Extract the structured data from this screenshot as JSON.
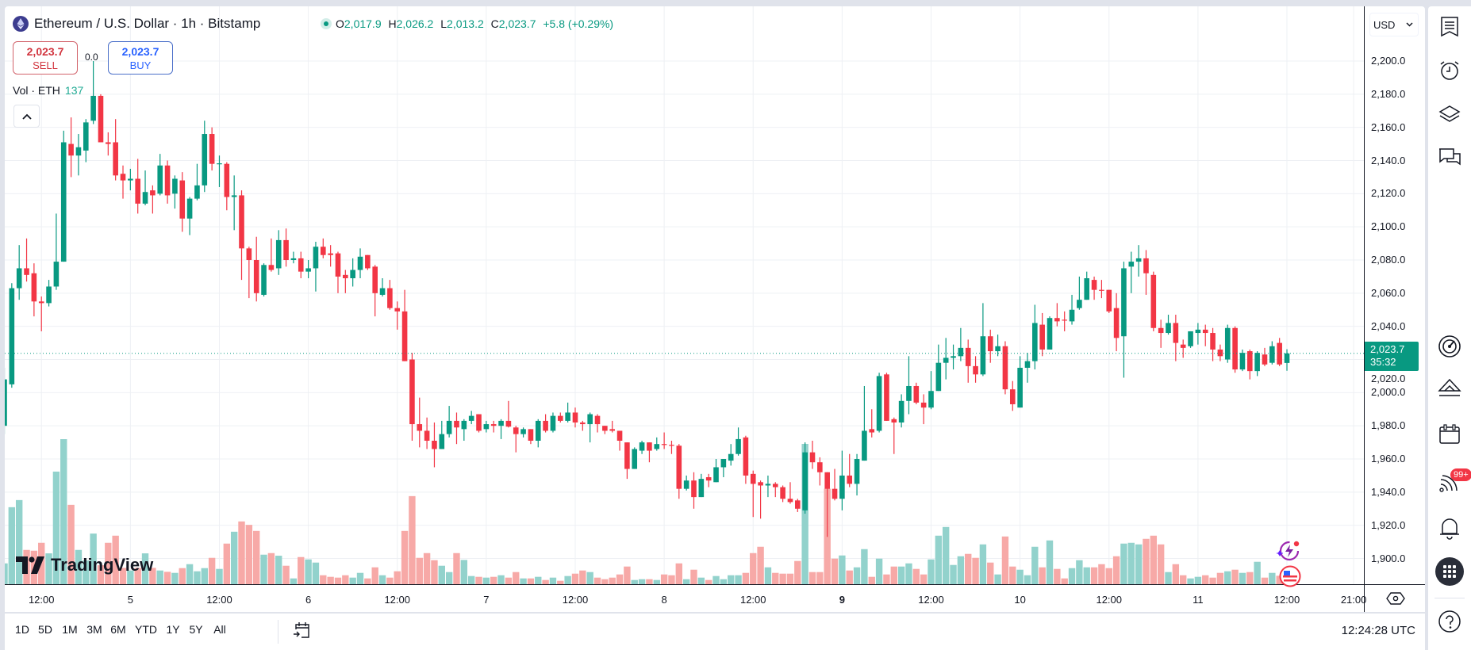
{
  "header": {
    "title": "Ethereum / U.S. Dollar · 1h · Bitstamp",
    "ohlc": {
      "o_label": "O",
      "o": "2,017.9",
      "h_label": "H",
      "h": "2,026.2",
      "l_label": "L",
      "l": "2,013.2",
      "c_label": "C",
      "c": "2,023.7",
      "change": "+5.8 (+0.29%)"
    },
    "sell": {
      "price": "2,023.7",
      "label": "SELL"
    },
    "buy": {
      "price": "2,023.7",
      "label": "BUY"
    },
    "spread": "0.0",
    "volume_legend": {
      "label": "Vol · ETH",
      "value": "137"
    }
  },
  "price_axis": {
    "currency": "USD",
    "last_price": "2,023.7",
    "countdown": "35:32"
  },
  "bottom_bar": {
    "ranges": [
      "1D",
      "5D",
      "1M",
      "3M",
      "6M",
      "YTD",
      "1Y",
      "5Y",
      "All"
    ],
    "clock": "12:24:28 UTC"
  },
  "logo_text": "TradingView",
  "right_toolbar": {
    "icons": [
      "watchlist-icon",
      "alert-clock-icon",
      "layers-icon",
      "chat-icon",
      "target-icon",
      "ideas-icon",
      "calendar-icon",
      "news-icon",
      "bell-icon",
      "apps-grid-icon",
      "help-icon"
    ],
    "news_badge": "99+"
  },
  "colors": {
    "up": "#089981",
    "down": "#f23645",
    "vol_up": "#92d2cc",
    "vol_down": "#f7a9a7",
    "grid": "#eef0f4"
  },
  "chart_data": {
    "type": "candlestick",
    "symbol": "Ethereum / U.S. Dollar",
    "interval": "1h",
    "ylim": [
      1900,
      2200
    ],
    "y_ticks": [
      "2,200.0",
      "2,180.0",
      "2,160.0",
      "2,140.0",
      "2,120.0",
      "2,100.0",
      "2,080.0",
      "2,060.0",
      "2,040.0",
      "2,020.0",
      "2,000.0",
      "1,980.0",
      "1,960.0",
      "1,940.0",
      "1,920.0",
      "1,900.0"
    ],
    "y_tick_values": [
      2200,
      2180,
      2160,
      2140,
      2120,
      2100,
      2080,
      2060,
      2040,
      2020,
      2000,
      1980,
      1960,
      1940,
      1920,
      1900
    ],
    "x_ticks": [
      {
        "label": "12:00",
        "candle": 5
      },
      {
        "label": "5",
        "candle": 17
      },
      {
        "label": "12:00",
        "candle": 29
      },
      {
        "label": "6",
        "candle": 41
      },
      {
        "label": "12:00",
        "candle": 53
      },
      {
        "label": "7",
        "candle": 65
      },
      {
        "label": "12:00",
        "candle": 77
      },
      {
        "label": "8",
        "candle": 89
      },
      {
        "label": "12:00",
        "candle": 101
      },
      {
        "label": "9",
        "candle": 113,
        "bold": true
      },
      {
        "label": "12:00",
        "candle": 125
      },
      {
        "label": "10",
        "candle": 137
      },
      {
        "label": "12:00",
        "candle": 149
      },
      {
        "label": "11",
        "candle": 161
      },
      {
        "label": "12:00",
        "candle": 173
      },
      {
        "label": "21:00",
        "candle": 182
      }
    ],
    "last_price": 2023.7,
    "grid": true,
    "candle_fields": [
      "open",
      "high",
      "low",
      "close",
      "volume"
    ],
    "candles": [
      [
        1980,
        2015,
        1975,
        2008,
        316
      ],
      [
        2005,
        2066,
        2003,
        2063,
        1168
      ],
      [
        2063,
        2089,
        2056,
        2075,
        1276
      ],
      [
        2075,
        2093,
        2067,
        2071,
        520
      ],
      [
        2072,
        2078,
        2046,
        2055,
        508
      ],
      [
        2055,
        2058,
        2037,
        2054,
        628
      ],
      [
        2054,
        2068,
        2052,
        2064,
        468
      ],
      [
        2064,
        2108,
        2062,
        2079,
        1708
      ],
      [
        2079,
        2158,
        2079,
        2151,
        2200
      ],
      [
        2150,
        2166,
        2130,
        2143,
        1204
      ],
      [
        2143,
        2156,
        2131,
        2148,
        520
      ],
      [
        2146,
        2165,
        2139,
        2163,
        360
      ],
      [
        2164,
        2200,
        2162,
        2179,
        768
      ],
      [
        2179,
        2180,
        2151,
        2151,
        288
      ],
      [
        2151,
        2157,
        2143,
        2150,
        628
      ],
      [
        2151,
        2165,
        2128,
        2131,
        736
      ],
      [
        2132,
        2137,
        2117,
        2128,
        248
      ],
      [
        2128,
        2135,
        2122,
        2129,
        208
      ],
      [
        2129,
        2141,
        2108,
        2114,
        248
      ],
      [
        2114,
        2134,
        2113,
        2121,
        468
      ],
      [
        2122,
        2125,
        2108,
        2119,
        248
      ],
      [
        2120,
        2144,
        2119,
        2137,
        208
      ],
      [
        2137,
        2140,
        2114,
        2119,
        188
      ],
      [
        2120,
        2131,
        2111,
        2129,
        172
      ],
      [
        2128,
        2133,
        2097,
        2105,
        244
      ],
      [
        2105,
        2118,
        2095,
        2117,
        304
      ],
      [
        2117,
        2138,
        2116,
        2125,
        196
      ],
      [
        2125,
        2164,
        2121,
        2156,
        244
      ],
      [
        2156,
        2160,
        2134,
        2138,
        400
      ],
      [
        2138,
        2143,
        2124,
        2138.3,
        232
      ],
      [
        2138,
        2139,
        2110,
        2118,
        616
      ],
      [
        2118,
        2131,
        2098,
        2119,
        796
      ],
      [
        2119,
        2122,
        2068,
        2087,
        952
      ],
      [
        2087,
        2088,
        2057,
        2080,
        900
      ],
      [
        2080,
        2094,
        2055,
        2060,
        808
      ],
      [
        2059,
        2078,
        2058,
        2077,
        448
      ],
      [
        2077,
        2093,
        2073,
        2074,
        472
      ],
      [
        2075,
        2098,
        2071,
        2092,
        432
      ],
      [
        2092,
        2099,
        2076,
        2080,
        280
      ],
      [
        2080,
        2085,
        2078,
        2081,
        88
      ],
      [
        2081,
        2085,
        2069,
        2073,
        412
      ],
      [
        2073,
        2080,
        2069,
        2075,
        376
      ],
      [
        2075,
        2091,
        2061,
        2088,
        328
      ],
      [
        2088,
        2093,
        2081,
        2083,
        136
      ],
      [
        2084,
        2089,
        2076,
        2083,
        112
      ],
      [
        2084,
        2085,
        2060,
        2070,
        100
      ],
      [
        2071,
        2074,
        2060,
        2069,
        136
      ],
      [
        2069,
        2081,
        2064,
        2074,
        100
      ],
      [
        2074,
        2087,
        2069,
        2082,
        172
      ],
      [
        2083,
        2083,
        2074,
        2075,
        88
      ],
      [
        2076,
        2077,
        2046,
        2060,
        256
      ],
      [
        2059,
        2069,
        2058,
        2063,
        136
      ],
      [
        2063,
        2068,
        2050,
        2051,
        100
      ],
      [
        2051,
        2055,
        2038,
        2049,
        196
      ],
      [
        2049,
        2062,
        2019,
        2019,
        808
      ],
      [
        2020,
        2024,
        1971,
        1981,
        1336
      ],
      [
        1981,
        1997,
        1967,
        1977,
        400
      ],
      [
        1977,
        1985,
        1966,
        1971,
        472
      ],
      [
        1971,
        1982,
        1955,
        1966,
        364
      ],
      [
        1966,
        1983,
        1966,
        1975,
        280
      ],
      [
        1975,
        1992,
        1973,
        1983,
        184
      ],
      [
        1983,
        1988,
        1969,
        1979,
        472
      ],
      [
        1978,
        1984,
        1971,
        1983,
        368
      ],
      [
        1983,
        1989,
        1981,
        1986,
        124
      ],
      [
        1987,
        1987,
        1976,
        1977,
        112
      ],
      [
        1978,
        1983,
        1976,
        1981,
        100
      ],
      [
        1981,
        1983,
        1976,
        1980,
        112
      ],
      [
        1980,
        1984,
        1972,
        1983,
        136
      ],
      [
        1983,
        1995,
        1979,
        1979.5,
        100
      ],
      [
        1979,
        1980,
        1964,
        1975,
        184
      ],
      [
        1975,
        1979,
        1973,
        1978,
        88
      ],
      [
        1978,
        1978,
        1969,
        1971,
        88
      ],
      [
        1971,
        1984,
        1967,
        1983,
        112
      ],
      [
        1983,
        1987,
        1976,
        1977,
        64
      ],
      [
        1977,
        1988,
        1976,
        1986,
        100
      ],
      [
        1986,
        1988,
        1982,
        1983,
        52
      ],
      [
        1983,
        1994,
        1982,
        1988,
        124
      ],
      [
        1988,
        1991,
        1979,
        1982,
        160
      ],
      [
        1982,
        1983,
        1977,
        1981,
        208
      ],
      [
        1981,
        1988,
        1970,
        1987,
        184
      ],
      [
        1986,
        1987,
        1976,
        1981,
        100
      ],
      [
        1980,
        1980,
        1975,
        1977,
        76
      ],
      [
        1978,
        1983,
        1976,
        1977,
        100
      ],
      [
        1977,
        1977,
        1965,
        1971,
        148
      ],
      [
        1970,
        1970,
        1948,
        1954,
        268
      ],
      [
        1954,
        1967,
        1954,
        1966,
        64
      ],
      [
        1965,
        1971,
        1963,
        1970,
        76
      ],
      [
        1970,
        1970,
        1958,
        1965,
        76
      ],
      [
        1966,
        1973,
        1965,
        1969,
        64
      ],
      [
        1969,
        1976,
        1966,
        1968.5,
        148
      ],
      [
        1968.5,
        1971,
        1963,
        1968,
        136
      ],
      [
        1968,
        1969,
        1936,
        1942,
        316
      ],
      [
        1942,
        1950,
        1941,
        1947,
        76
      ],
      [
        1947,
        1952,
        1930,
        1937,
        220
      ],
      [
        1937,
        1951,
        1937,
        1948,
        100
      ],
      [
        1949,
        1951,
        1943,
        1947,
        64
      ],
      [
        1946,
        1960,
        1946,
        1955,
        124
      ],
      [
        1955,
        1960,
        1949,
        1960,
        76
      ],
      [
        1959,
        1969,
        1956,
        1963,
        136
      ],
      [
        1963,
        1979,
        1962,
        1972,
        136
      ],
      [
        1973,
        1974,
        1945,
        1950,
        172
      ],
      [
        1951,
        1953,
        1925,
        1945,
        472
      ],
      [
        1946,
        1947,
        1924,
        1944,
        568
      ],
      [
        1944,
        1950,
        1937,
        1945,
        256
      ],
      [
        1945,
        1946,
        1937,
        1943,
        172
      ],
      [
        1943,
        1944,
        1934,
        1936,
        160
      ],
      [
        1936,
        1946,
        1933,
        1934,
        160
      ],
      [
        1935,
        1936,
        1928,
        1930,
        352
      ],
      [
        1929,
        1970,
        1927,
        1964,
        2128
      ],
      [
        1964,
        1971,
        1954,
        1958,
        184
      ],
      [
        1958,
        1961,
        1944,
        1952,
        184
      ],
      [
        1952,
        1952,
        1913,
        1942,
        1448
      ],
      [
        1942,
        1954,
        1935,
        1936,
        388
      ],
      [
        1936,
        1965,
        1929,
        1950,
        436
      ],
      [
        1950,
        1963,
        1943,
        1945,
        208
      ],
      [
        1945,
        1963,
        1938,
        1960,
        256
      ],
      [
        1959,
        2004,
        1959,
        1977,
        532
      ],
      [
        1978,
        1990,
        1973,
        1976,
        112
      ],
      [
        1977,
        2012,
        1976,
        2010,
        388
      ],
      [
        2011,
        2012,
        1983,
        1983,
        148
      ],
      [
        1984,
        1985,
        1963,
        1982,
        268
      ],
      [
        1982,
        1999,
        1979,
        1995,
        268
      ],
      [
        1995,
        2022,
        1987,
        2004,
        316
      ],
      [
        2004,
        2006,
        1993,
        1994,
        232
      ],
      [
        1994,
        1999,
        1981,
        1991,
        148
      ],
      [
        1991,
        2013,
        1990,
        2001,
        376
      ],
      [
        2001,
        2029,
        2001,
        2018,
        736
      ],
      [
        2018,
        2033,
        2008,
        2021,
        868
      ],
      [
        2021,
        2029,
        2014,
        2022,
        292
      ],
      [
        2022,
        2039,
        2019,
        2027,
        424
      ],
      [
        2027,
        2032,
        2006,
        2016,
        460
      ],
      [
        2016,
        2022,
        2006,
        2011,
        400
      ],
      [
        2011,
        2054,
        2010,
        2034,
        604
      ],
      [
        2034,
        2038,
        2018,
        2025,
        328
      ],
      [
        2025,
        2035,
        2022,
        2028,
        148
      ],
      [
        2028,
        2031,
        1999,
        2002,
        724
      ],
      [
        2002,
        2007,
        1989,
        1993,
        268
      ],
      [
        1991,
        2022,
        1991,
        2015,
        220
      ],
      [
        2015,
        2024,
        2006,
        2019,
        136
      ],
      [
        2019,
        2053,
        2014,
        2042,
        568
      ],
      [
        2041,
        2048,
        2022,
        2026,
        256
      ],
      [
        2026,
        2046,
        2026,
        2045,
        664
      ],
      [
        2045,
        2054,
        2040,
        2043,
        232
      ],
      [
        2044,
        2049,
        2037,
        2043.5,
        88
      ],
      [
        2043,
        2059,
        2041,
        2050,
        244
      ],
      [
        2051,
        2070,
        2050,
        2056,
        364
      ],
      [
        2056,
        2073,
        2056,
        2069,
        256
      ],
      [
        2068,
        2070,
        2056,
        2062,
        256
      ],
      [
        2062,
        2068,
        2057,
        2061.5,
        304
      ],
      [
        2062,
        2062,
        2048,
        2049,
        244
      ],
      [
        2051,
        2060,
        2025,
        2033,
        424
      ],
      [
        2034,
        2079,
        2009,
        2075,
        616
      ],
      [
        2076,
        2085,
        2060,
        2079,
        628
      ],
      [
        2079,
        2089,
        2070,
        2081,
        604
      ],
      [
        2081,
        2086,
        2059,
        2072,
        688
      ],
      [
        2071,
        2073,
        2037,
        2039,
        736
      ],
      [
        2039,
        2044,
        2027,
        2036,
        604
      ],
      [
        2036,
        2047,
        2035,
        2042,
        184
      ],
      [
        2042,
        2047,
        2019,
        2030,
        304
      ],
      [
        2029,
        2032,
        2021,
        2027,
        136
      ],
      [
        2028,
        2037,
        2027,
        2037,
        88
      ],
      [
        2036,
        2042,
        2029,
        2038,
        112
      ],
      [
        2038,
        2041,
        2028,
        2036,
        136
      ],
      [
        2036,
        2039,
        2019,
        2026,
        100
      ],
      [
        2026,
        2029,
        2019,
        2022,
        172
      ],
      [
        2020,
        2041,
        2018,
        2039,
        196
      ],
      [
        2039,
        2040,
        2012,
        2014,
        220
      ],
      [
        2014,
        2026,
        2013,
        2024,
        172
      ],
      [
        2025,
        2026,
        2008,
        2013,
        184
      ],
      [
        2013,
        2025,
        2010,
        2024,
        340
      ],
      [
        2023,
        2027,
        2016,
        2017,
        100
      ],
      [
        2018,
        2031,
        2017,
        2028,
        172
      ],
      [
        2030,
        2033,
        2016,
        2017,
        128
      ],
      [
        2017.9,
        2026.2,
        2013.2,
        2023.7,
        137
      ]
    ]
  }
}
